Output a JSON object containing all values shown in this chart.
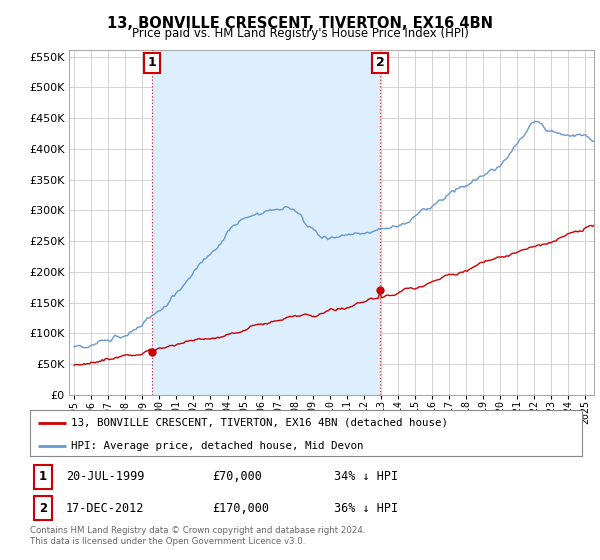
{
  "title": "13, BONVILLE CRESCENT, TIVERTON, EX16 4BN",
  "subtitle": "Price paid vs. HM Land Registry's House Price Index (HPI)",
  "legend_line1": "13, BONVILLE CRESCENT, TIVERTON, EX16 4BN (detached house)",
  "legend_line2": "HPI: Average price, detached house, Mid Devon",
  "annotation1_label": "1",
  "annotation1_date": "20-JUL-1999",
  "annotation1_price": "£70,000",
  "annotation1_hpi": "34% ↓ HPI",
  "annotation2_label": "2",
  "annotation2_date": "17-DEC-2012",
  "annotation2_price": "£170,000",
  "annotation2_hpi": "36% ↓ HPI",
  "footer": "Contains HM Land Registry data © Crown copyright and database right 2024.\nThis data is licensed under the Open Government Licence v3.0.",
  "red_color": "#cc0000",
  "blue_color": "#6699cc",
  "shade_color": "#ddeeff",
  "annotation_box_color": "#cc0000",
  "grid_color": "#cccccc",
  "background_color": "#ffffff",
  "ylim": [
    0,
    560000
  ],
  "yticks": [
    0,
    50000,
    100000,
    150000,
    200000,
    250000,
    300000,
    350000,
    400000,
    450000,
    500000,
    550000
  ],
  "sale1_x": 1999.55,
  "sale1_y": 70000,
  "sale2_x": 2012.96,
  "sale2_y": 170000,
  "vline1_x": 1999.55,
  "vline2_x": 2012.96,
  "xlim_left": 1994.7,
  "xlim_right": 2025.5
}
